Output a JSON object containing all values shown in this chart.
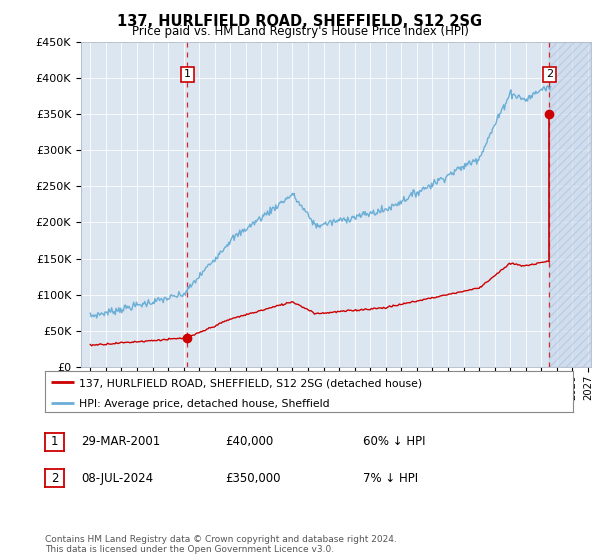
{
  "title": "137, HURLFIELD ROAD, SHEFFIELD, S12 2SG",
  "subtitle": "Price paid vs. HM Land Registry's House Price Index (HPI)",
  "legend_line1": "137, HURLFIELD ROAD, SHEFFIELD, S12 2SG (detached house)",
  "legend_line2": "HPI: Average price, detached house, Sheffield",
  "annotation1_label": "1",
  "annotation1_date": "29-MAR-2001",
  "annotation1_price": "£40,000",
  "annotation1_hpi": "60% ↓ HPI",
  "annotation2_label": "2",
  "annotation2_date": "08-JUL-2024",
  "annotation2_price": "£350,000",
  "annotation2_hpi": "7% ↓ HPI",
  "footer": "Contains HM Land Registry data © Crown copyright and database right 2024.\nThis data is licensed under the Open Government Licence v3.0.",
  "hpi_color": "#6baed6",
  "price_color": "#cc0000",
  "annotation_box_color": "#cc0000",
  "plot_bg": "#dce6f1",
  "ylim": [
    0,
    450000
  ],
  "yticks": [
    0,
    50000,
    100000,
    150000,
    200000,
    250000,
    300000,
    350000,
    400000,
    450000
  ],
  "purchase1_year": 2001.24,
  "purchase1_value": 40000,
  "purchase2_year": 2024.53,
  "purchase2_value": 350000
}
